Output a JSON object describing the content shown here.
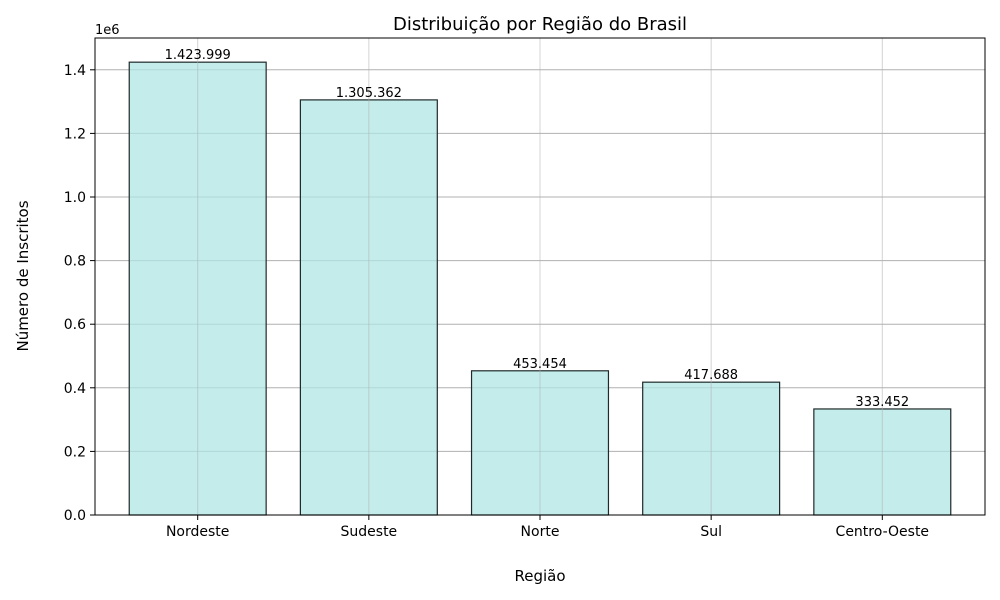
{
  "chart_data": {
    "type": "bar",
    "title": "Distribuição por Região do Brasil",
    "xlabel": "Região",
    "ylabel": "Número de Inscritos",
    "y_offset_text": "1e6",
    "categories": [
      "Nordeste",
      "Sudeste",
      "Norte",
      "Sul",
      "Centro-Oeste"
    ],
    "values": [
      1423999,
      1305362,
      453454,
      417688,
      333452
    ],
    "value_labels": [
      "1.423.999",
      "1.305.362",
      "453.454",
      "417.688",
      "333.452"
    ],
    "ylim": [
      0,
      1500000
    ],
    "yticks": [
      0,
      200000,
      400000,
      600000,
      800000,
      1000000,
      1200000,
      1400000
    ],
    "ytick_labels": [
      "0.0",
      "0.2",
      "0.4",
      "0.6",
      "0.8",
      "1.0",
      "1.2",
      "1.4"
    ],
    "grid": true,
    "colors": {
      "bar_fill": "#afe6e4",
      "bar_edge": "#1f2a2a",
      "grid": "#b0b0b0"
    }
  }
}
